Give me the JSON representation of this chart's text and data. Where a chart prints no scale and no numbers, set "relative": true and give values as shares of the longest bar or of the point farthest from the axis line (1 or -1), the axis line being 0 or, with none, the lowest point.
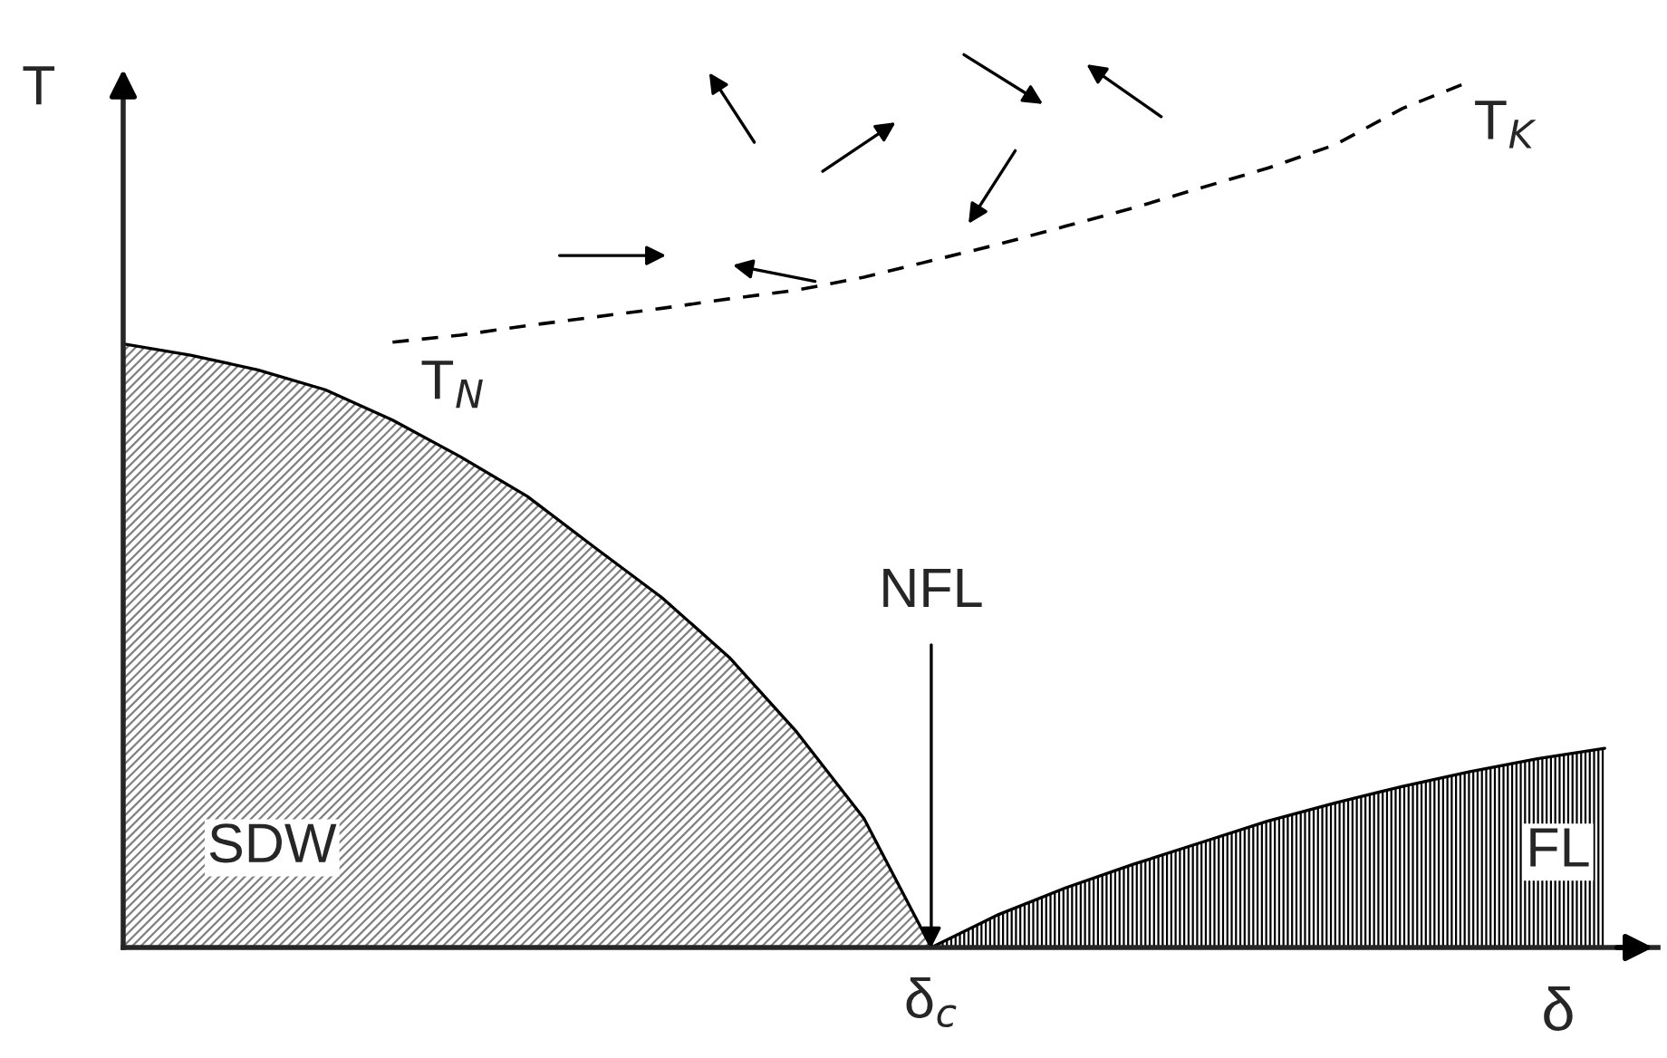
{
  "chart_data": {
    "type": "area",
    "relative": true,
    "xlabel": "δ",
    "ylabel": "T",
    "categories": [
      null,
      null,
      null,
      null,
      null,
      null,
      null,
      null,
      null,
      null,
      null,
      null,
      null,
      null,
      null,
      null,
      null,
      null,
      null,
      null,
      null,
      null,
      null
    ],
    "series": [
      {
        "type": "area",
        "color": "#808080",
        "values": [
          0.697,
          0.684,
          0.667,
          0.644,
          0.609,
          0.567,
          0.521,
          0.462,
          0.404,
          0.335,
          0.249,
          0.149,
          0,
          null,
          null,
          null,
          null,
          null,
          null,
          null,
          null,
          null,
          null
        ]
      },
      {
        "type": "area",
        "color": "#000000",
        "values": [
          null,
          null,
          null,
          null,
          null,
          null,
          null,
          null,
          null,
          null,
          null,
          null,
          0,
          0.038,
          0.069,
          0.096,
          0.121,
          0.146,
          0.167,
          0.186,
          0.203,
          0.218,
          0.23
        ]
      },
      {
        "type": "line",
        "color": "#000000",
        "line_style": "dashed",
        "marker": "none",
        "values": [
          null,
          null,
          null,
          null,
          0.699,
          0.707,
          0.718,
          0.728,
          0.738,
          0.749,
          0.759,
          0.774,
          0.793,
          0.812,
          0.833,
          0.854,
          0.877,
          0.9,
          0.927,
          0.969,
          1.0,
          null,
          null
        ]
      }
    ],
    "annotations": [
      "SDW",
      "FL",
      "T$_{N}$",
      "T$_{K}$",
      "NFL",
      "δ$_{c}$"
    ]
  }
}
